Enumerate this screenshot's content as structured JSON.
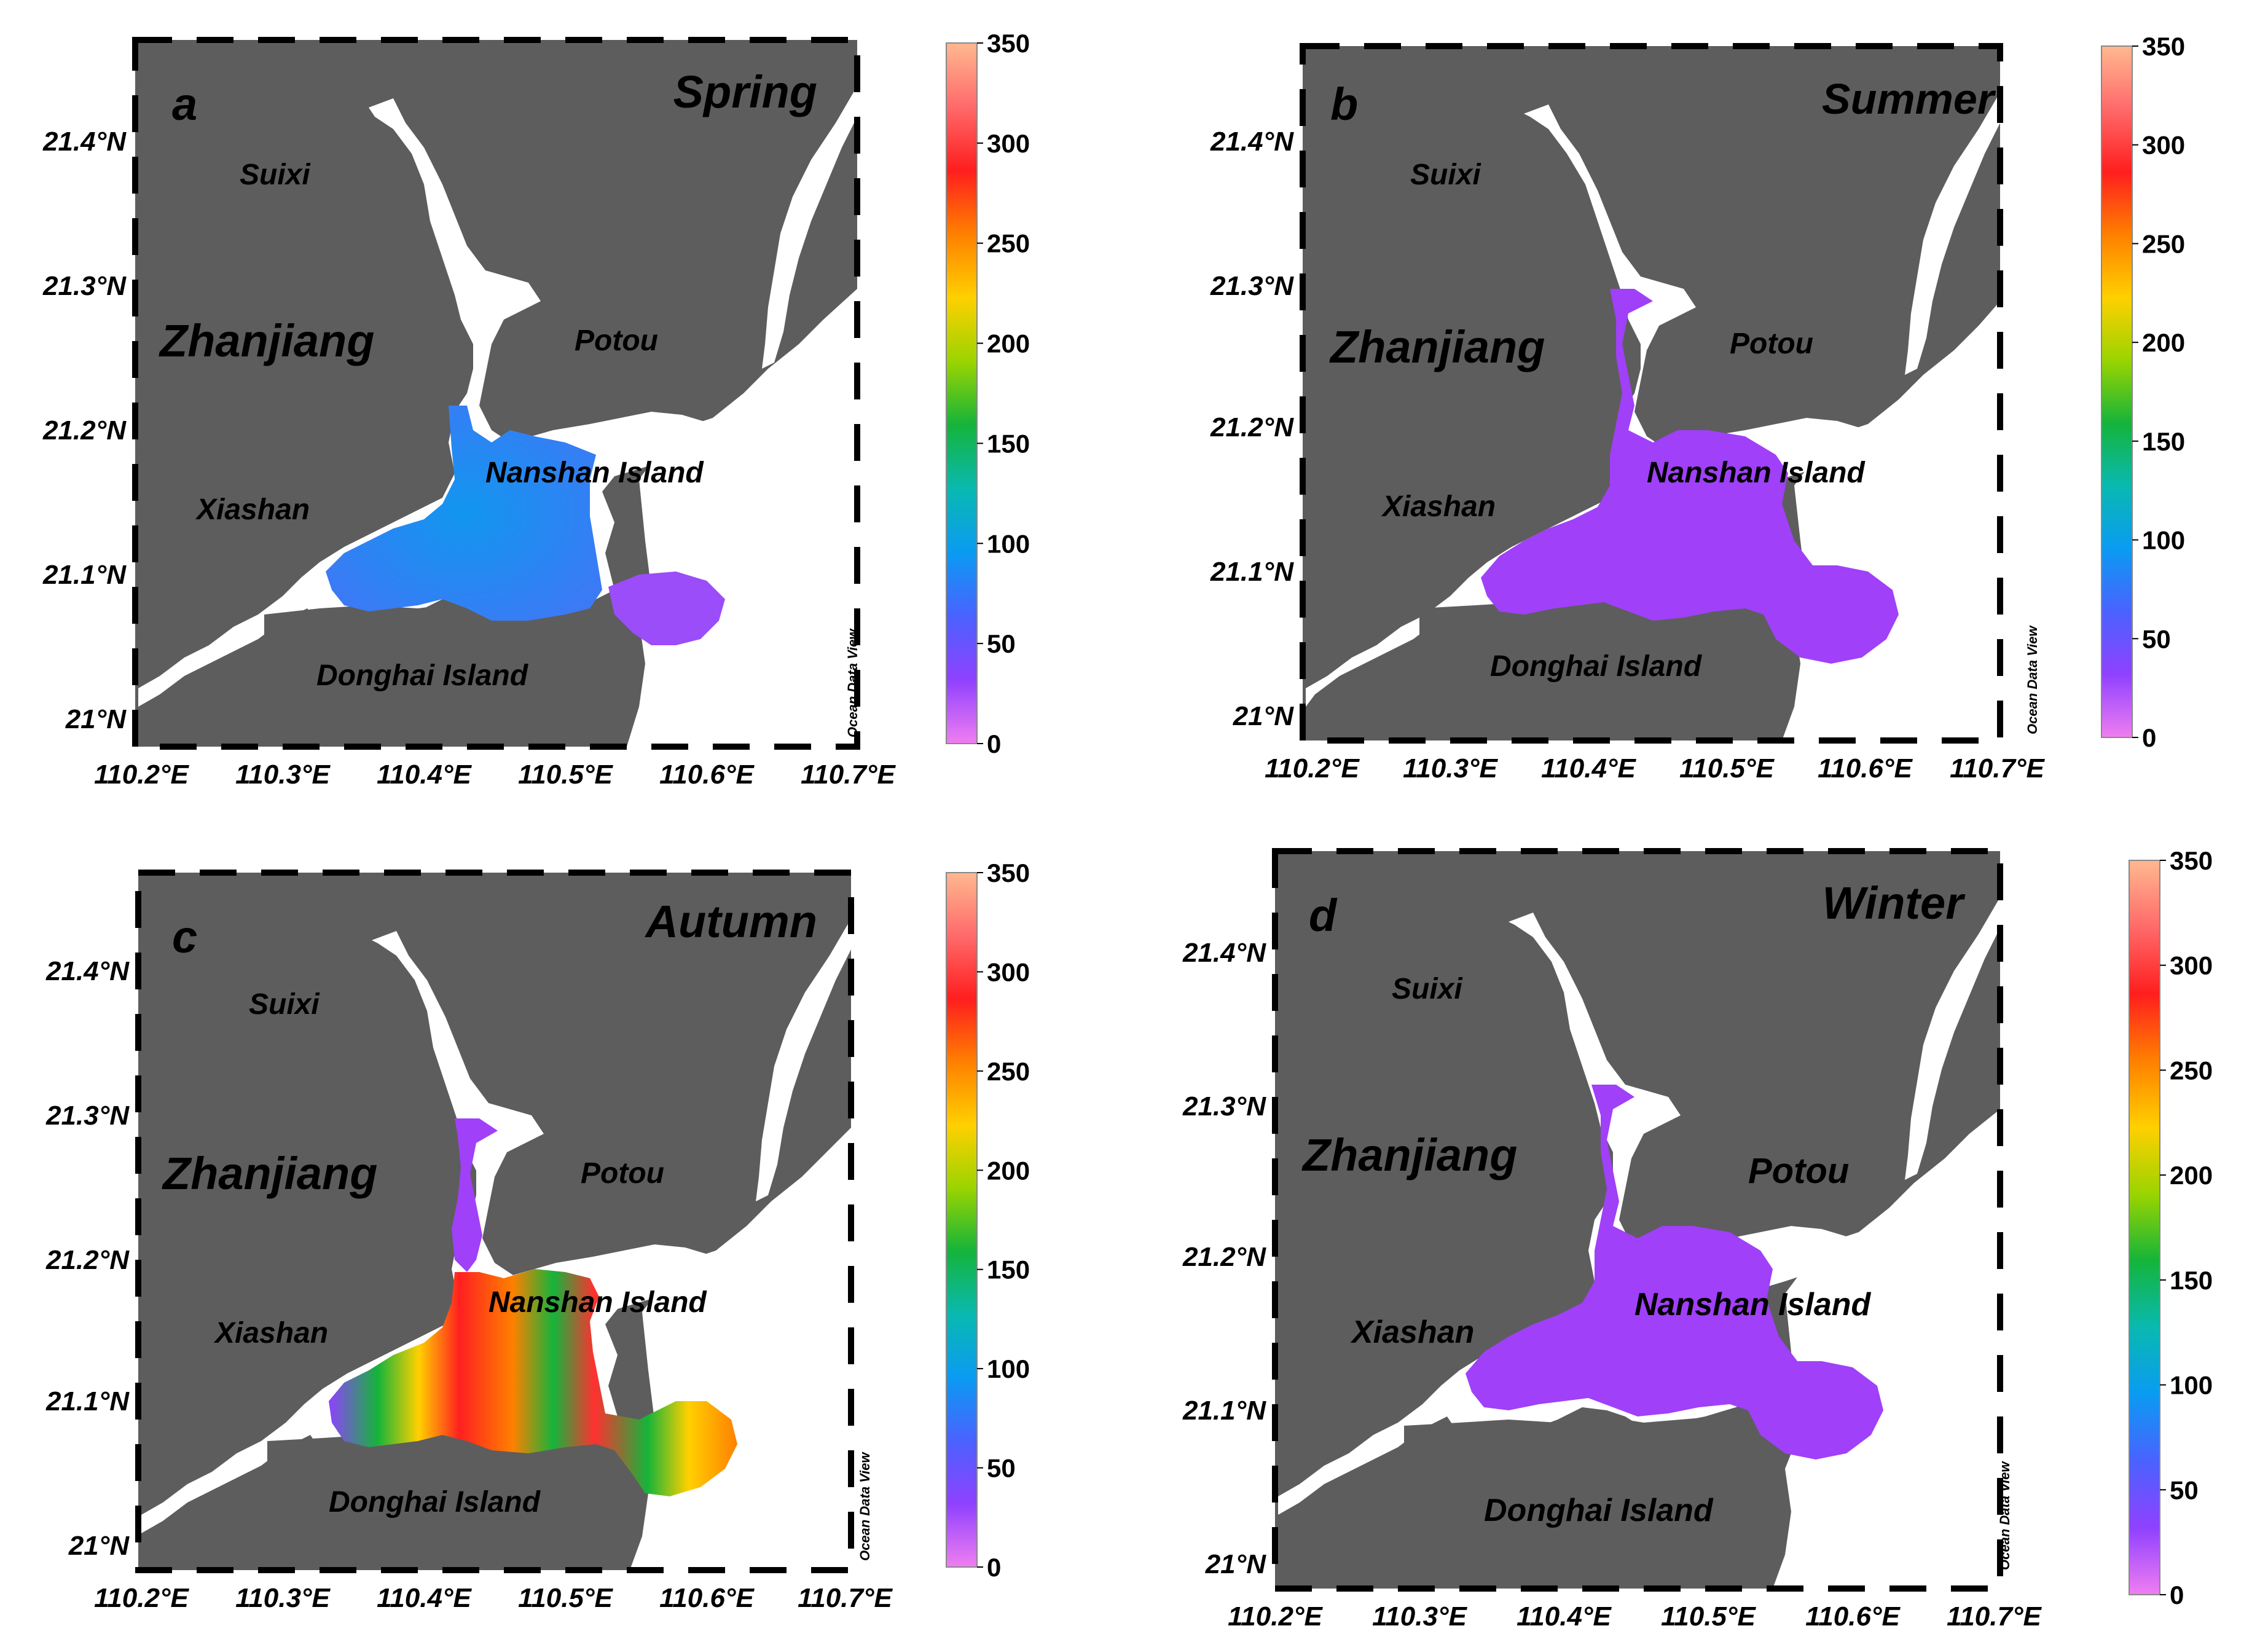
{
  "colorbar": {
    "ticks": [
      "0",
      "50",
      "100",
      "150",
      "200",
      "250",
      "300",
      "350"
    ],
    "stops": [
      "#f07ef0",
      "#8f41ff",
      "#4a62ff",
      "#0a9bf2",
      "#09b9b0",
      "#15b43a",
      "#9ad400",
      "#ffd000",
      "#ff8000",
      "#ff1e1e",
      "#ff6a6a",
      "#ffb890"
    ]
  },
  "axes": {
    "lon_ticks": [
      "110.2°E",
      "110.3°E",
      "110.4°E",
      "110.5°E",
      "110.6°E",
      "110.7°E"
    ],
    "lat_ticks": [
      "21°N",
      "21.1°N",
      "21.2°N",
      "21.3°N",
      "21.4°N"
    ]
  },
  "watermark": "Ocean Data View",
  "colors": {
    "land": "#5d5d5d",
    "water": "#ffffff"
  },
  "panels": [
    {
      "letter": "a",
      "season": "Spring",
      "labels": {
        "suixi": "Suixi",
        "zhanjiang": "Zhanjiang",
        "potou": "Potou",
        "nanshan": "Nanshan Island",
        "xiashan": "Xiashan",
        "donghai": "Donghai Island"
      }
    },
    {
      "letter": "b",
      "season": "Summer",
      "labels": {
        "suixi": "Suixi",
        "zhanjiang": "Zhanjiang",
        "potou": "Potou",
        "nanshan": "Nanshan Island",
        "xiashan": "Xiashan",
        "donghai": "Donghai Island"
      }
    },
    {
      "letter": "c",
      "season": "Autumn",
      "labels": {
        "suixi": "Suixi",
        "zhanjiang": "Zhanjiang",
        "potou": "Potou",
        "nanshan": "Nanshan Island",
        "xiashan": "Xiashan",
        "donghai": "Donghai Island"
      }
    },
    {
      "letter": "d",
      "season": "Winter",
      "labels": {
        "suixi": "Suixi",
        "zhanjiang": "Zhanjiang",
        "potou": "Potou",
        "nanshan": "Nanshan Island",
        "xiashan": "Xiashan",
        "donghai": "Donghai Island"
      }
    }
  ],
  "fields": [
    {
      "fill": "spring"
    },
    {
      "fill": "summer"
    },
    {
      "fill": "autumn"
    },
    {
      "fill": "winter"
    }
  ]
}
